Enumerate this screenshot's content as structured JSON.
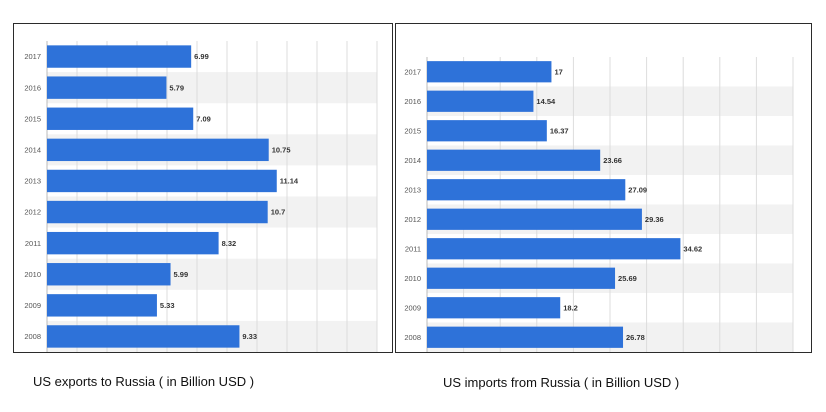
{
  "colors": {
    "bar": "#2e72d9",
    "stripe": "#f2f2f2",
    "grid": "#dcdcdc",
    "axis": "#bbbbbb"
  },
  "captions": {
    "left": "US exports to Russia ( in Billion USD )",
    "right": "US imports from Russia ( in Billion USD )"
  },
  "chart_data": [
    {
      "type": "bar",
      "orientation": "horizontal",
      "title": "",
      "categories": [
        "2017",
        "2016",
        "2015",
        "2014",
        "2013",
        "2012",
        "2011",
        "2010",
        "2009",
        "2008"
      ],
      "values": [
        6.99,
        5.79,
        7.09,
        10.75,
        11.14,
        10.7,
        8.32,
        5.99,
        5.33,
        9.33
      ],
      "value_labels": [
        "6.99",
        "5.79",
        "7.09",
        "10.75",
        "11.14",
        "10.7",
        "8.32",
        "5.99",
        "5.33",
        "9.33"
      ],
      "xlim": [
        0,
        16
      ],
      "grid": true
    },
    {
      "type": "bar",
      "orientation": "horizontal",
      "title": "",
      "categories": [
        "2017",
        "2016",
        "2015",
        "2014",
        "2013",
        "2012",
        "2011",
        "2010",
        "2009",
        "2008"
      ],
      "values": [
        17,
        14.54,
        16.37,
        23.66,
        27.09,
        29.36,
        34.62,
        25.69,
        18.2,
        26.78
      ],
      "value_labels": [
        "17",
        "14.54",
        "16.37",
        "23.66",
        "27.09",
        "29.36",
        "34.62",
        "25.69",
        "18.2",
        "26.78"
      ],
      "xlim": [
        0,
        50
      ],
      "grid": true
    }
  ]
}
